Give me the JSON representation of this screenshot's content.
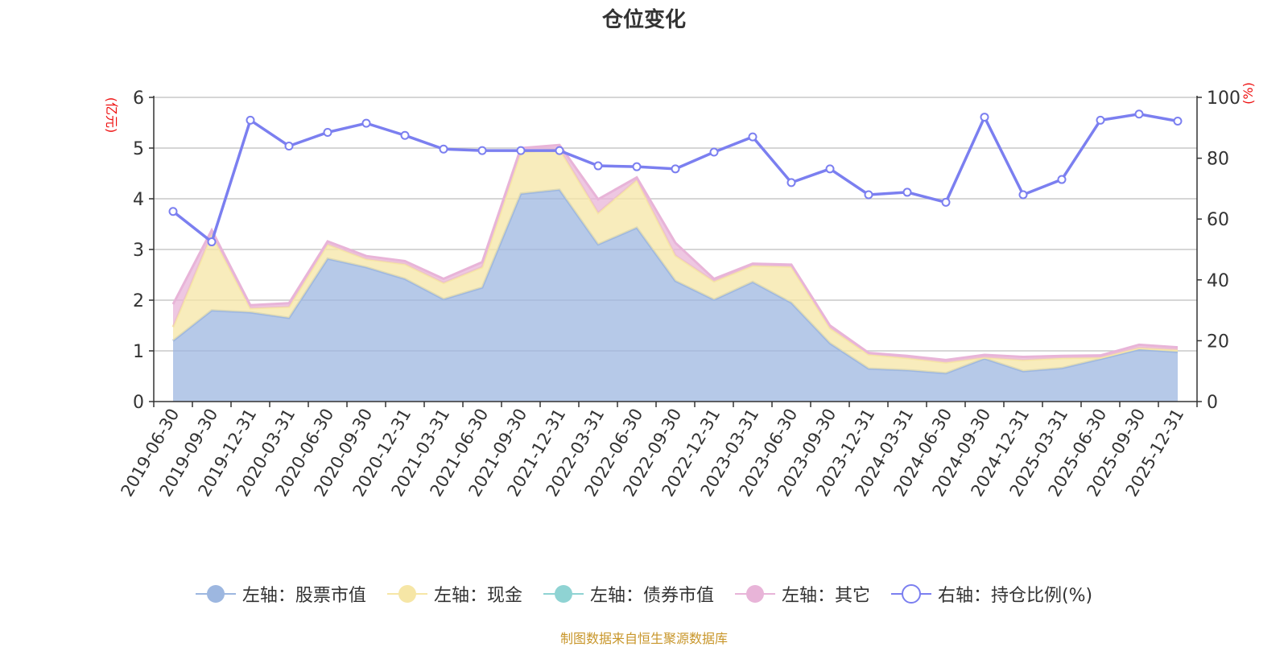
{
  "chart_data": {
    "type": "area",
    "title": "仓位变化",
    "source_note": "制图数据来自恒生聚源数据库",
    "left_axis": {
      "label": "(亿元)",
      "ylim": [
        0,
        6
      ],
      "ticks": [
        "0",
        "1",
        "2",
        "3",
        "4",
        "5",
        "6"
      ]
    },
    "right_axis": {
      "label": "(%)",
      "ylim": [
        0,
        100
      ],
      "ticks": [
        "0",
        "20",
        "40",
        "60",
        "80",
        "100"
      ]
    },
    "categories": [
      "2019-06-30",
      "2019-09-30",
      "2019-12-31",
      "2020-03-31",
      "2020-06-30",
      "2020-09-30",
      "2020-12-31",
      "2021-03-31",
      "2021-06-30",
      "2021-09-30",
      "2021-12-31",
      "2022-03-31",
      "2022-06-30",
      "2022-09-30",
      "2022-12-31",
      "2023-03-31",
      "2023-06-30",
      "2023-09-30",
      "2023-12-31",
      "2024-03-31",
      "2024-06-30",
      "2024-09-30",
      "2024-12-31",
      "2025-03-31",
      "2025-06-30",
      "2025-09-30",
      "2025-12-31"
    ],
    "series": [
      {
        "name": "左轴：股票市值",
        "axis": "left",
        "stacked": true,
        "color": "#9db7e0",
        "values": [
          1.2,
          1.8,
          1.76,
          1.65,
          2.82,
          2.65,
          2.42,
          2.02,
          2.25,
          4.1,
          4.18,
          3.1,
          3.43,
          2.38,
          2.01,
          2.36,
          1.95,
          1.15,
          0.65,
          0.62,
          0.56,
          0.85,
          0.6,
          0.66,
          0.84,
          1.03,
          0.98
        ]
      },
      {
        "name": "左轴：现金",
        "axis": "left",
        "stacked": true,
        "color": "#f6e6a6",
        "values": [
          0.27,
          1.5,
          0.08,
          0.22,
          0.28,
          0.16,
          0.29,
          0.32,
          0.4,
          0.82,
          0.8,
          0.62,
          0.94,
          0.5,
          0.36,
          0.32,
          0.71,
          0.3,
          0.28,
          0.24,
          0.21,
          0.02,
          0.22,
          0.2,
          0.03,
          0.03,
          0.04
        ]
      },
      {
        "name": "左轴：债券市值",
        "axis": "left",
        "stacked": true,
        "color": "#8fd3d3",
        "values": [
          0,
          0,
          0,
          0,
          0,
          0,
          0,
          0,
          0,
          0,
          0,
          0,
          0,
          0,
          0,
          0,
          0,
          0,
          0,
          0,
          0,
          0,
          0,
          0,
          0,
          0,
          0
        ]
      },
      {
        "name": "左轴：其它",
        "axis": "left",
        "stacked": true,
        "color": "#e8b4d8",
        "values": [
          0.45,
          0.08,
          0.06,
          0.07,
          0.06,
          0.06,
          0.06,
          0.08,
          0.1,
          0.08,
          0.08,
          0.27,
          0.05,
          0.25,
          0.05,
          0.04,
          0.04,
          0.05,
          0.03,
          0.04,
          0.05,
          0.05,
          0.06,
          0.04,
          0.04,
          0.06,
          0.05
        ]
      },
      {
        "name": "右轴：持仓比例(%)",
        "axis": "right",
        "type": "line",
        "color": "#7b7ff0",
        "values": [
          62.5,
          52.5,
          92.5,
          84,
          88.5,
          91.5,
          87.5,
          83,
          82.5,
          82.5,
          82.5,
          77.5,
          77.2,
          76.5,
          82,
          87,
          72,
          76.5,
          68,
          68.8,
          65.5,
          93.5,
          68,
          73,
          92.5,
          94.5,
          92.2
        ]
      }
    ]
  }
}
